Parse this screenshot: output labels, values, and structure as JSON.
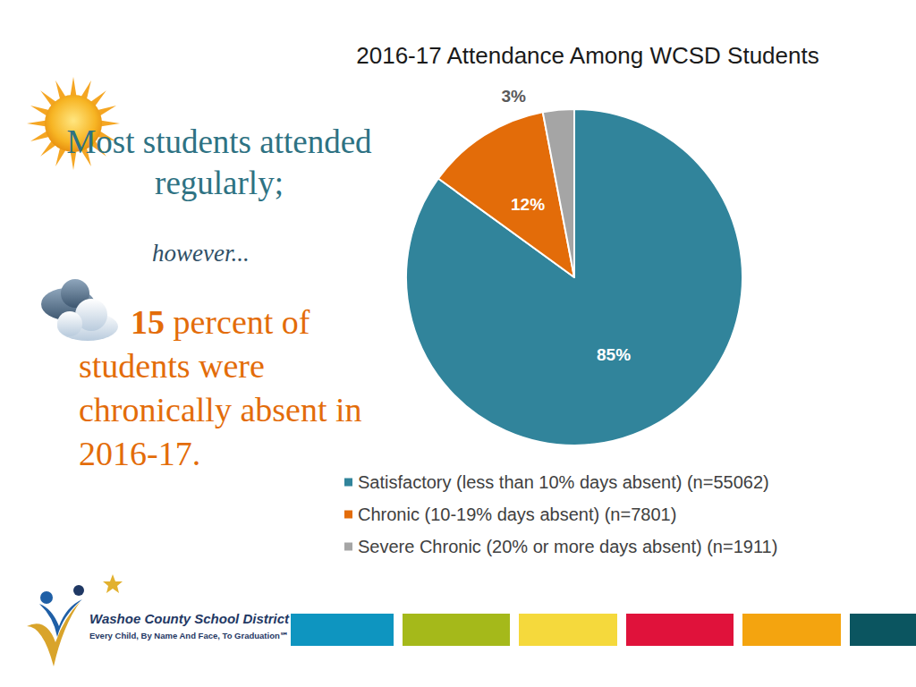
{
  "chart_data": {
    "type": "pie",
    "title": "2016-17 Attendance Among WCSD Students",
    "categories": [
      "Satisfactory (less than 10% days absent) (n=55062)",
      "Chronic (10-19% days absent) (n=7801)",
      "Severe Chronic (20% or more days absent) (n=1911)"
    ],
    "values": [
      85,
      12,
      3
    ],
    "value_labels": [
      "85%",
      "12%",
      "3%"
    ],
    "colors": [
      "#31849B",
      "#E36C09",
      "#A5A5A5"
    ],
    "data_labels": true,
    "legend": "bottom",
    "annotations": [
      "Most students attended regularly;",
      "however...",
      "15 percent of students were chronically absent in 2016-17."
    ]
  },
  "footer": {
    "organization": "Washoe County School District",
    "tagline": "Every Child, By Name And Face, To Graduation℠"
  }
}
